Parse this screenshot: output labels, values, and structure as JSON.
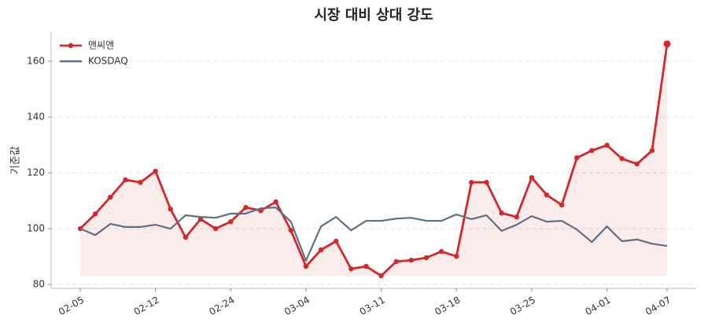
{
  "chart_data": {
    "type": "line",
    "title": "시장 대비 상대 강도",
    "y_label": "기준값",
    "categories": [
      "02-05",
      null,
      null,
      null,
      null,
      "02-12",
      null,
      null,
      null,
      null,
      "02-24",
      null,
      null,
      null,
      null,
      "03-04",
      null,
      null,
      null,
      null,
      "03-11",
      null,
      null,
      null,
      null,
      "03-18",
      null,
      null,
      null,
      null,
      "03-25",
      null,
      null,
      null,
      null,
      "04-01",
      null,
      null,
      null,
      "04-07"
    ],
    "series": [
      {
        "name": "앤씨앤",
        "color": "#d62728",
        "markers": true,
        "fill": true,
        "values": [
          100,
          105.3,
          111.3,
          117.5,
          116.6,
          120.6,
          107.0,
          96.9,
          103.4,
          100.0,
          102.5,
          107.6,
          106.5,
          109.6,
          99.4,
          86.5,
          92.4,
          95.5,
          85.6,
          86.5,
          83.1,
          88.2,
          88.7,
          89.6,
          91.8,
          90.1,
          116.6,
          116.6,
          105.6,
          104.2,
          118.3,
          112.1,
          108.5,
          125.4,
          128.0,
          129.9,
          125.1,
          123.2,
          128.0,
          166.2
        ]
      },
      {
        "name": "KOSDAQ",
        "color": "#5f6f86",
        "markers": false,
        "fill": false,
        "values": [
          100,
          97.7,
          101.7,
          100.6,
          100.6,
          101.4,
          100,
          104.8,
          104.2,
          103.9,
          105.4,
          105.4,
          107.3,
          107.6,
          102.5,
          88.5,
          100.8,
          104.2,
          99.4,
          102.8,
          102.8,
          103.6,
          103.9,
          102.8,
          102.8,
          105.1,
          103.4,
          104.8,
          99.2,
          101.4,
          104.5,
          102.5,
          102.8,
          99.7,
          95.2,
          100.8,
          95.5,
          96.1,
          94.6,
          93.8
        ]
      }
    ],
    "ylim": [
      78.6,
      170.7
    ],
    "yticks": [
      80,
      100,
      120,
      140,
      160
    ],
    "grid": true,
    "legend": "upper-left"
  }
}
